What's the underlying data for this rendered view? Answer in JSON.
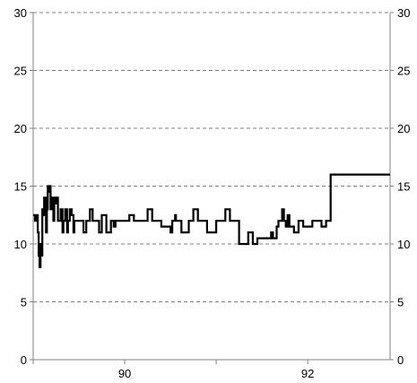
{
  "chart_data": {
    "type": "line",
    "title": "",
    "xlabel": "",
    "ylabel": "",
    "ylim": [
      0,
      30
    ],
    "yticks": [
      0,
      5,
      10,
      15,
      20,
      25,
      30
    ],
    "ytick_labels": [
      "0",
      "5",
      "10",
      "15",
      "20",
      "25",
      "30"
    ],
    "xlim": [
      89.0,
      92.9
    ],
    "xtick_labels": [
      "90",
      "92"
    ],
    "xtick_label_positions": [
      90,
      92
    ],
    "xtick_marks": [
      89.0,
      90.0,
      91.0,
      92.0
    ],
    "grid": true,
    "grid_style": "dashed",
    "right_axis_mirrors_left": true,
    "line_color": "#000000",
    "series": [
      {
        "x": [
          89.0,
          89.02,
          89.04,
          89.05,
          89.06,
          89.07,
          89.08,
          89.09,
          89.1,
          89.11,
          89.12,
          89.14,
          89.15,
          89.16,
          89.17,
          89.18,
          89.19,
          89.2,
          89.21,
          89.22,
          89.23,
          89.24,
          89.25,
          89.27,
          89.3,
          89.32,
          89.33,
          89.35,
          89.37,
          89.38,
          89.4,
          89.42,
          89.44,
          89.45,
          89.5,
          89.55,
          89.58,
          89.6,
          89.62,
          89.65,
          89.7,
          89.72,
          89.75,
          89.8,
          89.85,
          89.88,
          89.9,
          89.95,
          90.0,
          90.05,
          90.1,
          90.2,
          90.25,
          90.3,
          90.35,
          90.4,
          90.5,
          90.52,
          90.55,
          90.56,
          90.62,
          90.7,
          90.75,
          90.8,
          90.9,
          91.0,
          91.05,
          91.1,
          91.15,
          91.2,
          91.25,
          91.3,
          91.35,
          91.4,
          91.45,
          91.5,
          91.55,
          91.6,
          91.62,
          91.63,
          91.66,
          91.68,
          91.7,
          91.72,
          91.74,
          91.76,
          91.78,
          91.8,
          91.85,
          91.9,
          91.95,
          92.0,
          92.05,
          92.1,
          92.15,
          92.2,
          92.25,
          92.3,
          92.35,
          92.4,
          92.45,
          92.5,
          92.55,
          92.58,
          92.62,
          92.65,
          92.7,
          92.75,
          92.8,
          92.85,
          92.9
        ],
        "y": [
          12.5,
          12.0,
          12.5,
          11.0,
          9.0,
          8.0,
          10.0,
          9.0,
          13.0,
          12.5,
          14.0,
          11.0,
          13.0,
          15.0,
          14.5,
          15.0,
          13.0,
          14.0,
          13.0,
          12.0,
          14.0,
          13.5,
          14.0,
          12.0,
          13.0,
          11.0,
          12.0,
          13.0,
          11.0,
          12.0,
          13.0,
          12.5,
          11.0,
          12.0,
          12.0,
          11.0,
          12.0,
          12.0,
          13.0,
          12.0,
          12.0,
          11.0,
          12.5,
          11.0,
          12.0,
          11.5,
          12.0,
          12.0,
          12.0,
          12.5,
          12.0,
          12.0,
          13.0,
          12.0,
          12.0,
          11.5,
          11.0,
          12.0,
          12.5,
          12.0,
          11.0,
          12.0,
          13.0,
          12.0,
          11.0,
          12.0,
          12.0,
          13.0,
          12.0,
          12.0,
          10.0,
          10.0,
          11.0,
          10.0,
          10.5,
          10.5,
          10.5,
          11.0,
          10.5,
          10.5,
          11.5,
          12.0,
          12.0,
          13.0,
          12.0,
          11.5,
          12.5,
          11.5,
          11.0,
          12.0,
          11.5,
          11.5,
          12.0,
          12.0,
          11.5,
          12.0,
          16.0,
          16.0,
          16.0,
          16.0,
          16.0,
          16.0,
          16.0,
          16.0,
          16.0,
          16.0,
          16.0,
          16.0,
          16.0,
          16.0,
          16.0
        ]
      }
    ]
  }
}
